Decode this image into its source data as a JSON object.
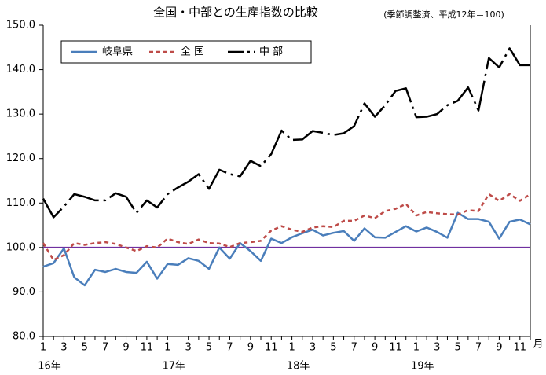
{
  "chart_data": {
    "type": "line",
    "title": "全国・中部との生産指数の比較",
    "subtitle": "(季節調整済、平成12年＝100)",
    "categories": [
      "1",
      null,
      "3",
      null,
      "5",
      null,
      "7",
      null,
      "9",
      null,
      "11",
      null,
      "1",
      null,
      "3",
      null,
      "5",
      null,
      "7",
      null,
      "9",
      null,
      "11",
      null,
      "1",
      null,
      "3",
      null,
      "5",
      null,
      "7",
      null,
      "9",
      null,
      "11",
      null,
      "1",
      null,
      "3",
      null,
      "5",
      null,
      "7",
      null,
      "9",
      null,
      "11",
      null
    ],
    "years": [
      "16年",
      "17年",
      "18年",
      "19年"
    ],
    "x_unit": "月",
    "ylim": [
      80,
      150
    ],
    "yticks": [
      {
        "value": 80,
        "label": "80.0"
      },
      {
        "value": 90,
        "label": "90.0"
      },
      {
        "value": 100,
        "label": "100.0"
      },
      {
        "value": 110,
        "label": "110.0"
      },
      {
        "value": 120,
        "label": "120.0"
      },
      {
        "value": 130,
        "label": "130.0"
      },
      {
        "value": 140,
        "label": "140.0"
      },
      {
        "value": 150,
        "label": "150.0"
      }
    ],
    "reference_line": {
      "value": 100,
      "color": "#7030a0"
    },
    "legend": "top-left",
    "series": [
      {
        "name": "岐阜県",
        "color": "#4a7ebb",
        "style": "solid",
        "values": [
          95.7,
          96.5,
          99.8,
          93.3,
          91.5,
          95,
          94.5,
          95.2,
          94.5,
          94.3,
          96.8,
          93,
          96.3,
          96.1,
          97.6,
          97,
          95.2,
          100,
          97.5,
          101,
          99.2,
          97,
          102,
          101,
          102.3,
          103.2,
          104,
          102.7,
          103.3,
          103.7,
          101.5,
          104.3,
          102.3,
          102.2,
          103.5,
          104.8,
          103.6,
          104.5,
          103.5,
          102.2,
          107.8,
          106.4,
          106.4,
          105.8,
          102,
          105.8,
          106.3,
          105.2
        ]
      },
      {
        "name": "全 国",
        "color": "#be4b48",
        "style": "dashed",
        "values": [
          101,
          97.2,
          98.3,
          101,
          100.6,
          101,
          101.2,
          100.8,
          100,
          99.2,
          100.3,
          100,
          102,
          101.2,
          100.8,
          101.8,
          101,
          100.9,
          100.1,
          101,
          101.2,
          101.5,
          103.8,
          104.8,
          104,
          103.5,
          104.5,
          104.8,
          104.6,
          106,
          106,
          107.2,
          106.6,
          108.2,
          108.7,
          109.8,
          107.2,
          108,
          107.7,
          107.5,
          107.4,
          108.4,
          108.2,
          112,
          110.5,
          112,
          110.5,
          112
        ]
      },
      {
        "name": "中 部",
        "color": "#000000",
        "style": "dashdot",
        "values": [
          111,
          106.8,
          109.2,
          112,
          111.4,
          110.6,
          110.6,
          112.2,
          111.4,
          107.8,
          110.6,
          109,
          112,
          113.5,
          114.8,
          116.5,
          113.2,
          117.5,
          116.5,
          116,
          119.5,
          118.3,
          121,
          126.3,
          124.2,
          124.3,
          126.2,
          125.8,
          125.3,
          125.7,
          127.3,
          132.4,
          129.4,
          132,
          135.2,
          135.8,
          129.3,
          129.4,
          130,
          132,
          133,
          136,
          130.8,
          142.6,
          140.5,
          144.8,
          141,
          141
        ]
      }
    ]
  }
}
